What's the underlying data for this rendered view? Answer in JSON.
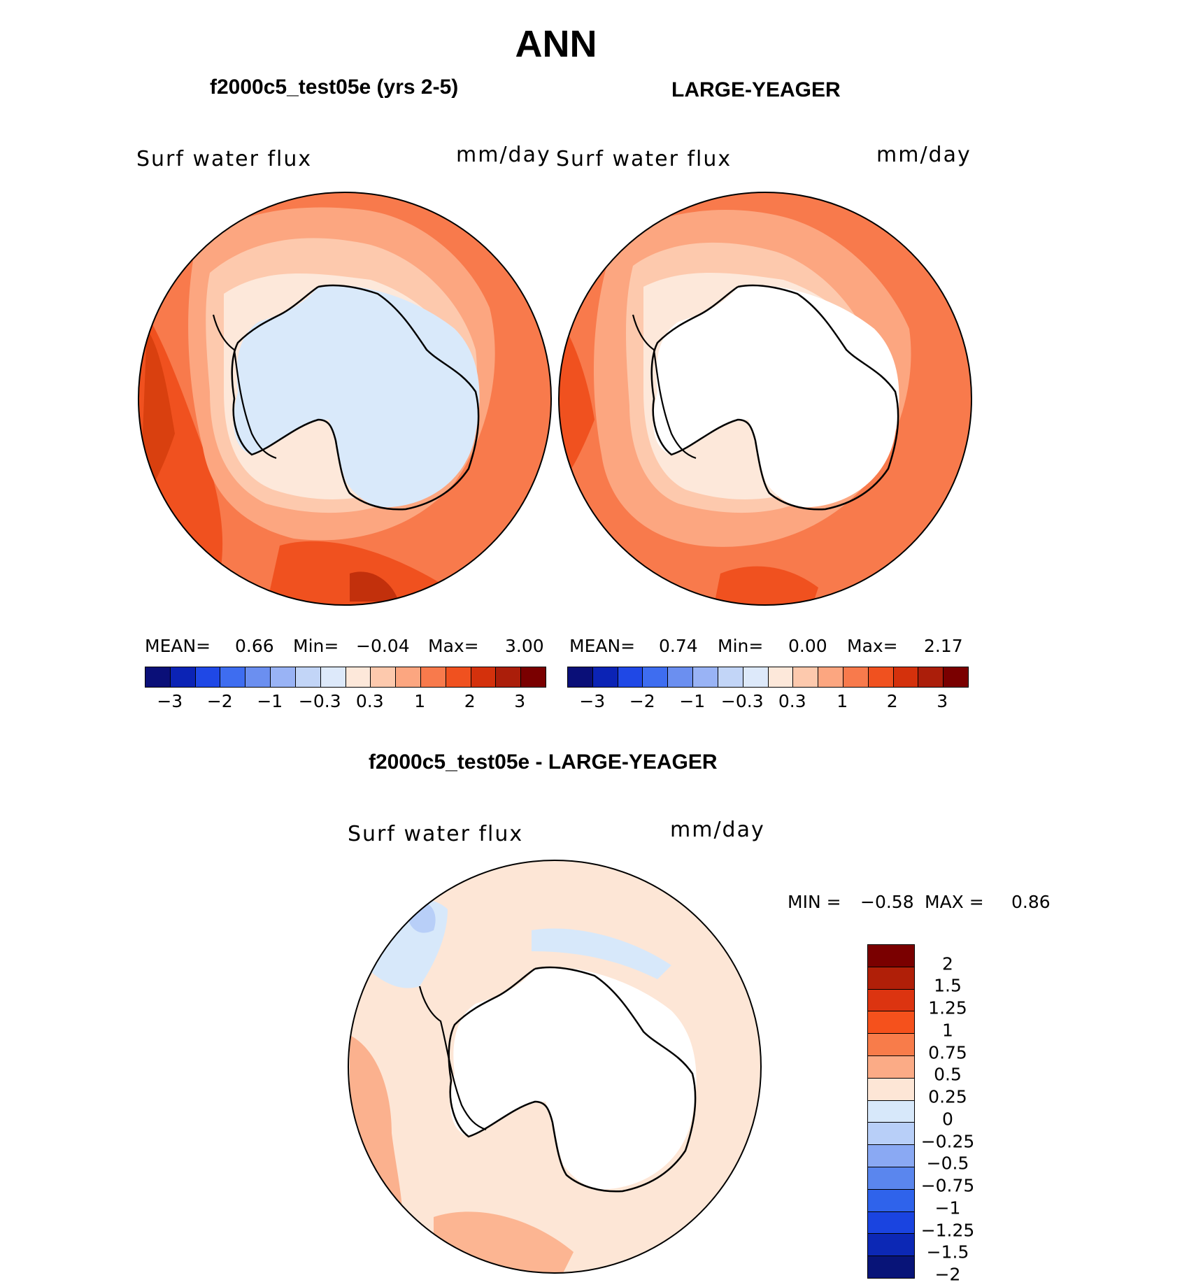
{
  "page_title": "ANN",
  "panels": [
    {
      "title": "f2000c5_test05e (yrs 2-5)",
      "variable": "Surf water flux",
      "units": "mm/day",
      "mean_label": "MEAN=",
      "mean": "0.66",
      "min_label": "Min=",
      "min": "−0.04",
      "max_label": "Max=",
      "max": "3.00"
    },
    {
      "title": "LARGE-YEAGER",
      "variable": "Surf water flux",
      "units": "mm/day",
      "mean_label": "MEAN=",
      "mean": "0.74",
      "min_label": "Min=",
      "min": "0.00",
      "max_label": "Max=",
      "max": "2.17"
    }
  ],
  "abs_colorbar": {
    "colors": [
      "#0a0f78",
      "#0b23b5",
      "#1f48e6",
      "#3e6df0",
      "#6b8ff0",
      "#99b3f5",
      "#c2d5f7",
      "#dde9fa",
      "#fde8da",
      "#fdc9ad",
      "#fca680",
      "#f87a4c",
      "#f0511f",
      "#d4310c",
      "#ab1e0a",
      "#7a0000"
    ],
    "ticks": [
      "−3",
      "−2",
      "−1",
      "−0.3",
      "0.3",
      "1",
      "2",
      "3"
    ]
  },
  "diff_panel": {
    "title": "f2000c5_test05e - LARGE-YEAGER",
    "variable": "Surf water flux",
    "units": "mm/day",
    "min_label": "MIN =",
    "min": "−0.58",
    "max_label": "MAX =",
    "max": "0.86"
  },
  "diff_colorbar": {
    "colors": [
      "#7a0000",
      "#b01f08",
      "#dc3410",
      "#f5511c",
      "#f87c4a",
      "#fbab86",
      "#fde6d6",
      "#d7e8fa",
      "#b8cff8",
      "#8aa9f3",
      "#5a86ee",
      "#2f63eb",
      "#1a44e0",
      "#0c28b5",
      "#081478"
    ],
    "ticks": [
      "2",
      "1.5",
      "1.25",
      "1",
      "0.75",
      "0.5",
      "0.25",
      "0",
      "−0.25",
      "−0.5",
      "−0.75",
      "−1",
      "−1.25",
      "−1.5",
      "−2"
    ]
  },
  "map_colors": {
    "deep": "#f0511f",
    "mid": "#f87a4c",
    "light": "#fca680",
    "pale": "#fdc9ad",
    "pinkish": "#fde8da",
    "ice": "#d9e9fa",
    "blue": "#b8cff8"
  }
}
